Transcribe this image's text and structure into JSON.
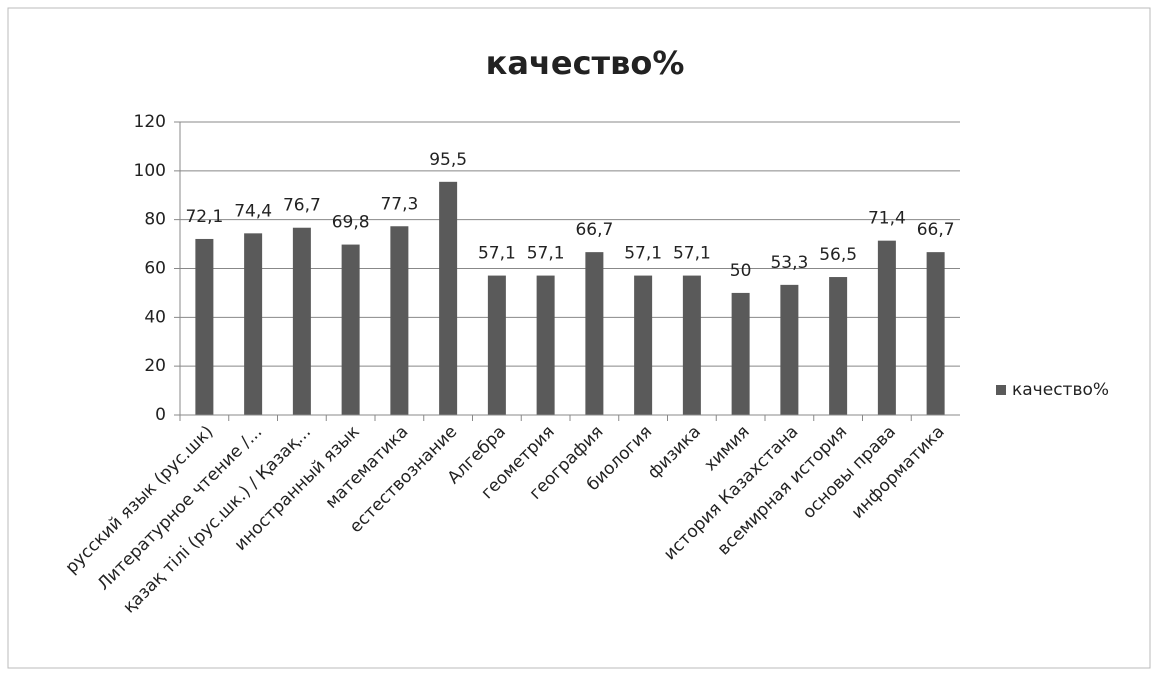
{
  "chart_data": {
    "type": "bar",
    "title": "качество%",
    "categories": [
      "русский язык (рус.шк)",
      "Литературное чтение /...",
      "қазақ тілі (рус.шк.) / Қазақ...",
      "иностранный язык",
      "математика",
      "естествознание",
      "Алгебра",
      "геометрия",
      "география",
      "биология",
      "физика",
      "химия",
      "история Казахстана",
      "всемирная история",
      "основы права",
      "информатика"
    ],
    "series": [
      {
        "name": "качество%",
        "color": "#5a5a5a",
        "values": [
          72.1,
          74.4,
          76.7,
          69.8,
          77.3,
          95.5,
          57.1,
          57.1,
          66.7,
          57.1,
          57.1,
          50,
          53.3,
          56.5,
          71.4,
          66.7
        ],
        "value_labels": [
          "72,1",
          "74,4",
          "76,7",
          "69,8",
          "77,3",
          "95,5",
          "57,1",
          "57,1",
          "66,7",
          "57,1",
          "57,1",
          "50",
          "53,3",
          "56,5",
          "71,4",
          "66,7"
        ]
      }
    ],
    "ylim": [
      0,
      120
    ],
    "yticks": [
      0,
      20,
      40,
      60,
      80,
      100,
      120
    ],
    "grid": true,
    "legend": "right"
  }
}
